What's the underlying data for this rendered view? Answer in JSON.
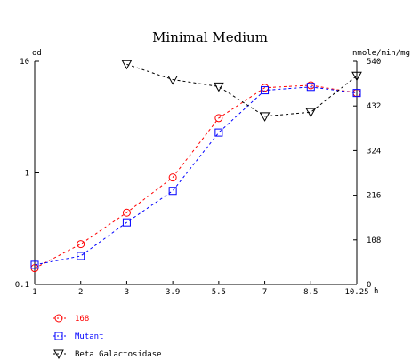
{
  "chart_data": {
    "type": "line",
    "title": "Minimal Medium",
    "left_axis": {
      "label": "od",
      "scale": "log",
      "ylim": [
        0.1,
        10
      ],
      "ticks": [
        {
          "value": 0.1,
          "label": "0.1"
        },
        {
          "value": 1,
          "label": "1"
        },
        {
          "value": 10,
          "label": "10"
        }
      ]
    },
    "right_axis": {
      "label": "nmole/min/mg",
      "scale": "linear",
      "ylim": [
        0,
        540
      ],
      "ticks": [
        {
          "value": 0,
          "label": "0"
        },
        {
          "value": 108,
          "label": "108"
        },
        {
          "value": 216,
          "label": "216"
        },
        {
          "value": 324,
          "label": "324"
        },
        {
          "value": 432,
          "label": "432"
        },
        {
          "value": 540,
          "label": "540"
        }
      ]
    },
    "x_axis": {
      "unit": "h",
      "xlim": [
        1,
        10.25
      ],
      "ticks": [
        {
          "value": 1,
          "label": "1"
        },
        {
          "value": 2,
          "label": "2"
        },
        {
          "value": 3,
          "label": "3"
        },
        {
          "value": 3.9,
          "label": "3.9"
        },
        {
          "value": 5.5,
          "label": "5.5"
        },
        {
          "value": 7,
          "label": "7"
        },
        {
          "value": 8.5,
          "label": "8.5"
        },
        {
          "value": 10.25,
          "label": "10.25"
        }
      ]
    },
    "series": [
      {
        "name": "168",
        "axis": "left",
        "marker": "circle",
        "color": "#ff0000",
        "points": [
          [
            1,
            0.14
          ],
          [
            2,
            0.23
          ],
          [
            3,
            0.44
          ],
          [
            3.9,
            0.91
          ],
          [
            5.5,
            3.1
          ],
          [
            7,
            5.8
          ],
          [
            8.5,
            6.1
          ],
          [
            10.25,
            5.2
          ]
        ]
      },
      {
        "name": "Mutant",
        "axis": "left",
        "marker": "square",
        "color": "#0000ff",
        "points": [
          [
            1,
            0.15
          ],
          [
            2,
            0.18
          ],
          [
            3,
            0.36
          ],
          [
            3.9,
            0.69
          ],
          [
            5.5,
            2.3
          ],
          [
            7,
            5.5
          ],
          [
            8.5,
            5.9
          ],
          [
            10.25,
            5.2
          ]
        ]
      },
      {
        "name": "Beta Galactosidase",
        "axis": "right",
        "marker": "triangle-down",
        "color": "#000000",
        "points": [
          [
            3,
            533
          ],
          [
            3.9,
            496
          ],
          [
            5.5,
            479
          ],
          [
            7,
            407
          ],
          [
            8.5,
            417
          ],
          [
            10.25,
            505
          ]
        ]
      }
    ],
    "legend_position": "bottom-left",
    "grid": false
  }
}
